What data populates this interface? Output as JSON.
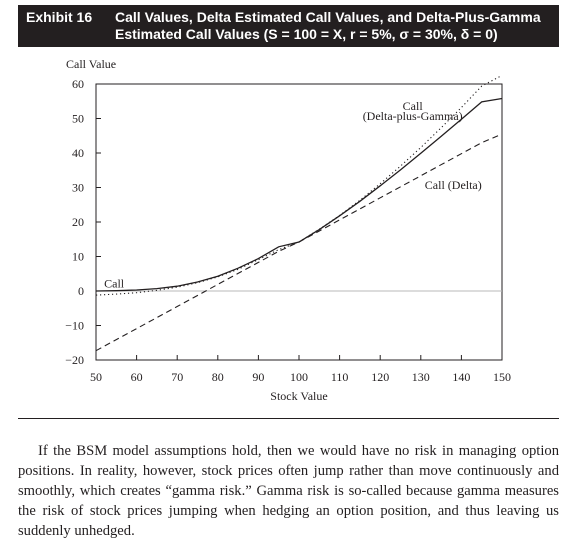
{
  "exhibit": {
    "label": "Exhibit 16",
    "title": "Call Values, Delta Estimated Call Values, and Delta-Plus-Gamma Estimated Call Values (S = 100 = X, r = 5%, σ = 30%, δ = 0)"
  },
  "chart_data": {
    "type": "line",
    "title": "",
    "xlabel": "Stock Value",
    "ylabel": "Call Value",
    "xlim": [
      50,
      150
    ],
    "ylim": [
      -20,
      60
    ],
    "xticks": [
      50,
      60,
      70,
      80,
      90,
      100,
      110,
      120,
      130,
      140,
      150
    ],
    "yticks": [
      -20,
      -10,
      0,
      10,
      20,
      30,
      40,
      50,
      60
    ],
    "grid": false,
    "x": [
      50,
      55,
      60,
      65,
      70,
      75,
      80,
      85,
      90,
      95,
      100,
      105,
      110,
      115,
      120,
      125,
      130,
      135,
      140,
      145,
      150
    ],
    "series": [
      {
        "name": "Call",
        "style": "solid",
        "values": [
          0.0,
          0.1,
          0.3,
          0.7,
          1.4,
          2.6,
          4.3,
          6.6,
          9.4,
          12.8,
          14.2,
          17.8,
          21.8,
          26.0,
          30.5,
          35.1,
          39.9,
          44.8,
          49.8,
          54.8,
          55.8
        ]
      },
      {
        "name": "Call (Delta)",
        "style": "dashed",
        "values": [
          -17.3,
          -14.1,
          -10.9,
          -7.7,
          -4.5,
          -1.3,
          1.9,
          5.1,
          8.3,
          11.5,
          14.2,
          17.4,
          20.6,
          23.8,
          27.0,
          30.2,
          33.4,
          36.6,
          39.8,
          43.0,
          45.5
        ]
      },
      {
        "name": "Call (Delta-plus-Gamma)",
        "style": "dotted",
        "values": [
          -1.2,
          -0.9,
          -0.5,
          0.2,
          1.1,
          2.4,
          4.1,
          6.3,
          9.1,
          12.0,
          14.2,
          17.9,
          21.9,
          26.3,
          31.1,
          36.2,
          41.6,
          47.3,
          53.2,
          59.4,
          62.5
        ]
      }
    ],
    "annotations": [
      {
        "text": "Call",
        "x": 52,
        "y": 1
      },
      {
        "text": "Call",
        "x": 128,
        "y": 52.5
      },
      {
        "text": "(Delta-plus-Gamma)",
        "x": 128,
        "y": 49.5
      },
      {
        "text": "Call (Delta)",
        "x": 138,
        "y": 29.5
      }
    ]
  },
  "body_text": "If the BSM model assumptions hold, then we would have no risk in managing option positions. In reality, however, stock prices often jump rather than move continuously and smoothly, which creates “gamma risk.” Gamma risk is so-called because gamma measures the risk of stock prices jumping when hedging an option position, and thus leaving us suddenly unhedged."
}
